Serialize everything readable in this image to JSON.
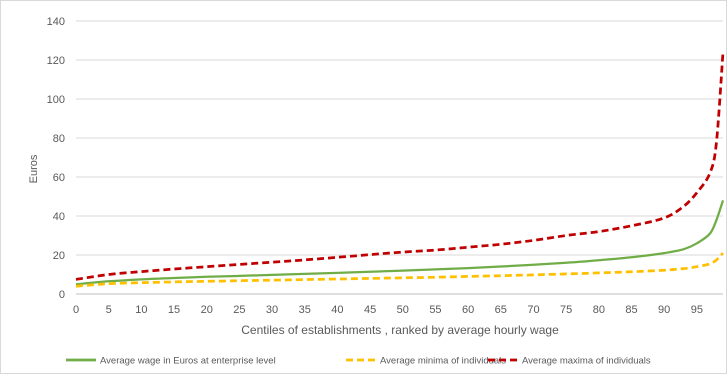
{
  "chart_data": {
    "type": "line",
    "title": "",
    "xlabel": "Centiles of establishments , ranked by average hourly wage",
    "ylabel": "Euros",
    "xlim": [
      0,
      99
    ],
    "ylim": [
      0,
      140
    ],
    "x_ticks": [
      "0",
      "5",
      "10",
      "15",
      "20",
      "25",
      "30",
      "35",
      "40",
      "45",
      "50",
      "55",
      "60",
      "65",
      "70",
      "75",
      "80",
      "85",
      "90",
      "95"
    ],
    "y_ticks": [
      "0",
      "20",
      "40",
      "60",
      "80",
      "100",
      "120",
      "140"
    ],
    "grid": "horizontal",
    "legend_position": "bottom",
    "x": [
      0,
      5,
      10,
      15,
      20,
      25,
      30,
      35,
      40,
      45,
      50,
      55,
      60,
      65,
      70,
      75,
      80,
      85,
      90,
      93,
      95,
      97,
      98,
      99
    ],
    "series": [
      {
        "name": "Average  wage in Euros at enterprise level",
        "color": "#70ad47",
        "style": "solid",
        "values": [
          5,
          6.5,
          7.5,
          8.2,
          8.8,
          9.3,
          9.8,
          10.3,
          10.8,
          11.4,
          12,
          12.6,
          13.3,
          14.1,
          15,
          16,
          17.3,
          18.8,
          21,
          23,
          26,
          31,
          38,
          48
        ]
      },
      {
        "name": "Average minima of individuals",
        "color": "#ffc000",
        "style": "dashed",
        "values": [
          4,
          5.3,
          5.8,
          6.2,
          6.5,
          6.8,
          7.1,
          7.4,
          7.7,
          8,
          8.3,
          8.6,
          9,
          9.4,
          9.8,
          10.3,
          10.8,
          11.4,
          12.2,
          13,
          14,
          15.5,
          17.5,
          21
        ]
      },
      {
        "name": "Average maxima of individuals",
        "color": "#c00000",
        "style": "dashed",
        "values": [
          7.5,
          10,
          11.5,
          12.8,
          14,
          15.2,
          16.3,
          17.5,
          18.8,
          20.2,
          21.5,
          22.5,
          24,
          25.5,
          27.5,
          30,
          32,
          35,
          39,
          45,
          52,
          62,
          78,
          124
        ]
      }
    ]
  }
}
